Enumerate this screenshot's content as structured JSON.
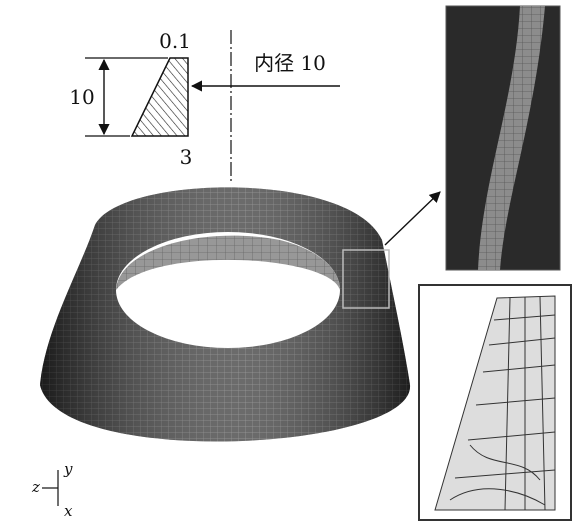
{
  "labels": {
    "top_width": "0.1",
    "height": "10",
    "bottom_width": "3",
    "inner_diameter": "内径 10"
  },
  "axes": {
    "z": "z",
    "y": "y",
    "x": "x"
  }
}
